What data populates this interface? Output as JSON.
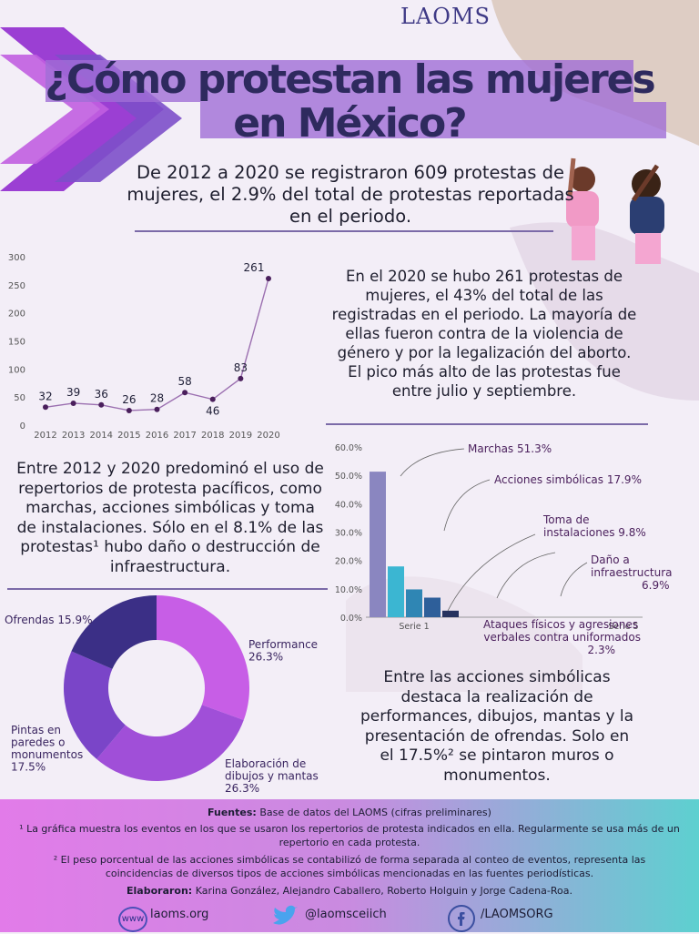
{
  "brand": {
    "logo": "LAOMS"
  },
  "title": {
    "line1": "¿Cómo protestan las mujeres",
    "line2": "en México?"
  },
  "lead": "De 2012 a 2020 se registraron 609 protestas de mujeres, el 2.9% del total de protestas reportadas en el periodo.",
  "text_2020": "En el 2020 se hubo 261 protestas de mujeres, el 43% del total de las registradas en el periodo. La mayoría de ellas fueron contra de la violencia de género y por la legalización del aborto. El pico más alto de las protestas fue entre julio y septiembre.",
  "text_repertorios": "Entre 2012 y 2020 predominó el uso de repertorios de protesta pacíficos, como marchas, acciones simbólicas y toma de instalaciones. Sólo en el 8.1% de las protestas¹ hubo daño o destrucción de infraestructura.",
  "text_simbolicas": "Entre las acciones simbólicas destaca la realización de performances, dibujos, mantas y la presentación de ofrendas. Solo en el 17.5%² se pintaron muros o monumentos.",
  "colors": {
    "accent": "#7b3fd0",
    "purple_dark": "#2e2a5e",
    "pink": "#f06fe0",
    "teal": "#45c8c8"
  },
  "chart_data": [
    {
      "type": "line",
      "x": [
        "2012",
        "2013",
        "2014",
        "2015",
        "2016",
        "2017",
        "2018",
        "2019",
        "2020"
      ],
      "series": [
        {
          "values": [
            32,
            39,
            36,
            26,
            28,
            58,
            46,
            83,
            261
          ]
        }
      ],
      "yticks": [
        "0",
        "50",
        "100",
        "150",
        "200",
        "250",
        "300"
      ],
      "ylim": [
        0,
        300
      ],
      "data_labels": [
        "32",
        "39",
        "36",
        "26",
        "28",
        "58",
        "46",
        "83",
        "261"
      ],
      "color": "#4a1f5c"
    },
    {
      "type": "bar",
      "categories": [
        "Marchas",
        "Acciones simbólicas",
        "Toma de instalaciones",
        "Daño a infraestructura",
        "Ataques físicos y agresiones verbales contra uniformados"
      ],
      "values": [
        51.3,
        17.9,
        9.8,
        6.9,
        2.3
      ],
      "group_labels": [
        "Serie 1",
        "Serie 5"
      ],
      "yticks": [
        "0.0%",
        "10.0%",
        "20.0%",
        "30.0%",
        "40.0%",
        "50.0%",
        "60.0%"
      ],
      "ylim": [
        0,
        60
      ],
      "annotations": [
        "Marchas 51.3%",
        "Acciones simbólicas 17.9%",
        "Toma de instalaciones 9.8%",
        "Daño a infraestructura 6.9%",
        "Ataques físicos y agresiones verbales contra uniformados 2.3%"
      ],
      "colors": [
        "#8a86c0",
        "#3bb6d2",
        "#2f86b4",
        "#2e5f9a",
        "#26325f"
      ]
    },
    {
      "type": "pie",
      "labels": [
        "Performance",
        "Elaboración de dibujos y mantas",
        "Pintas en paredes o monumentos",
        "Ofrendas"
      ],
      "values": [
        26.3,
        26.3,
        17.5,
        15.9
      ],
      "annotations": [
        "Performance 26.3%",
        "Elaboración de dibujos y mantas 26.3%",
        "Pintas en paredes o monumentos 17.5%",
        "Ofrendas 15.9%"
      ],
      "colors": [
        "#c75ee6",
        "#a04fd8",
        "#7a45c8",
        "#3b2f86"
      ]
    }
  ],
  "footer": {
    "fuentes_label": "Fuentes:",
    "fuentes": "Base de datos del LAOMS (cifras preliminares)",
    "note1": "¹ La gráfica muestra los eventos en los que se usaron los repertorios de protesta indicados en ella. Regularmente se usa más de un repertorio en cada protesta.",
    "note2": "² El peso porcentual de las acciones simbólicas se contabilizó de forma separada al conteo de eventos, representa las coincidencias de diversos tipos de acciones simbólicas mencionadas en las fuentes periodísticas.",
    "elaboraron_label": "Elaboraron:",
    "elaboraron": "Karina González, Alejandro Caballero, Roberto Holguin y Jorge Cadena-Roa.",
    "web": "laoms.org",
    "web_icon_text": "www",
    "twitter": "@laomsceiich",
    "facebook": "/LAOMSORG"
  }
}
